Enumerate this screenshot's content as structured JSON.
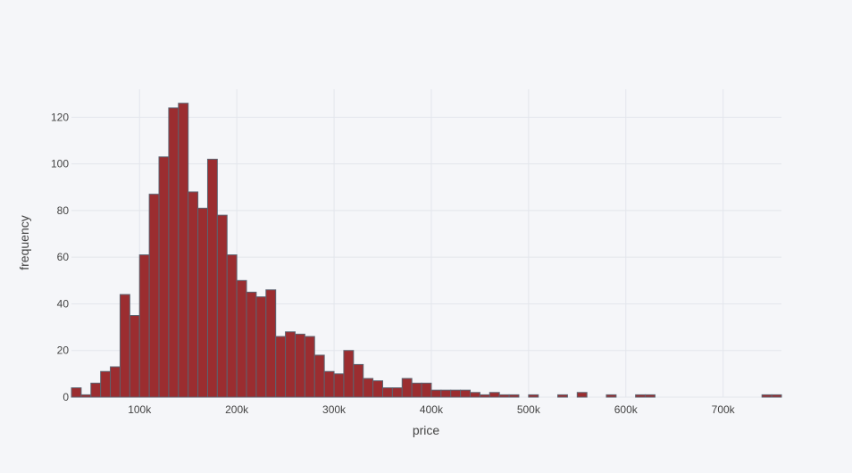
{
  "chart_data": {
    "type": "bar",
    "subtype": "histogram",
    "xlabel": "price",
    "ylabel": "frequency",
    "bin_width": 10000,
    "x_start": 30000,
    "xlim": [
      30000,
      760000
    ],
    "ylim": [
      0,
      132
    ],
    "x_ticks": [
      100000,
      200000,
      300000,
      400000,
      500000,
      600000,
      700000
    ],
    "x_tick_labels": [
      "100k",
      "200k",
      "300k",
      "400k",
      "500k",
      "600k",
      "700k"
    ],
    "y_ticks": [
      0,
      20,
      40,
      60,
      80,
      100,
      120
    ],
    "y_tick_labels": [
      "0",
      "20",
      "40",
      "60",
      "80",
      "100",
      "120"
    ],
    "values": [
      4,
      1,
      6,
      11,
      13,
      44,
      35,
      61,
      87,
      103,
      124,
      126,
      88,
      81,
      102,
      78,
      61,
      50,
      45,
      43,
      46,
      26,
      28,
      27,
      26,
      18,
      11,
      10,
      20,
      14,
      8,
      7,
      4,
      4,
      8,
      6,
      6,
      3,
      3,
      3,
      3,
      2,
      1,
      2,
      1,
      1,
      0,
      1,
      0,
      0,
      1,
      0,
      2,
      0,
      0,
      1,
      0,
      0,
      1,
      1,
      0,
      0,
      0,
      0,
      0,
      0,
      0,
      0,
      0,
      0,
      0,
      1,
      1
    ],
    "grid": true,
    "colors": {
      "bar_fill": "#9b2d30",
      "bar_edge": "#5c6370",
      "grid": "#e3e6ec",
      "background": "#f5f6f9"
    }
  }
}
